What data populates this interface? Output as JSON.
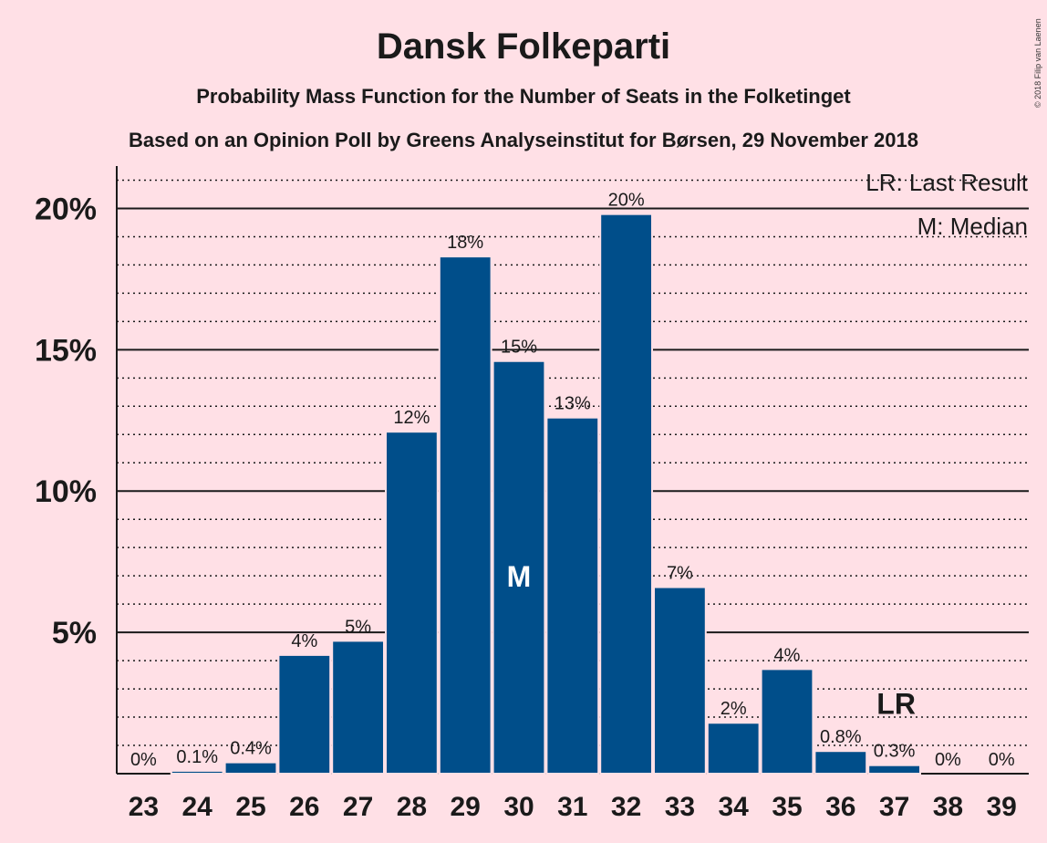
{
  "chart_data": {
    "type": "bar",
    "title": "Dansk Folkeparti",
    "subtitle": "Probability Mass Function for the Number of Seats in the Folketinget",
    "subtitle2": "Based on an Opinion Poll by Greens Analyseinstitut for Børsen, 29 November 2018",
    "copyright": "© 2018 Filip van Laenen",
    "categories": [
      "23",
      "24",
      "25",
      "26",
      "27",
      "28",
      "29",
      "30",
      "31",
      "32",
      "33",
      "34",
      "35",
      "36",
      "37",
      "38",
      "39"
    ],
    "values": [
      0.0,
      0.1,
      0.4,
      4.2,
      4.7,
      12.1,
      18.3,
      14.6,
      12.6,
      19.8,
      6.6,
      1.8,
      3.7,
      0.8,
      0.3,
      0.0,
      0.0
    ],
    "labels": [
      "0%",
      "0.1%",
      "0.4%",
      "4%",
      "5%",
      "12%",
      "18%",
      "15%",
      "13%",
      "20%",
      "7%",
      "2%",
      "4%",
      "0.8%",
      "0.3%",
      "0%",
      "0%"
    ],
    "ylim": [
      0,
      21.5
    ],
    "yticks": [
      5,
      10,
      15,
      20
    ],
    "ytick_labels": [
      "5%",
      "10%",
      "15%",
      "20%"
    ],
    "minor_grid_step": 1,
    "median_category": "30",
    "median_marker": "M",
    "last_result_category": "37",
    "last_result_marker": "LR",
    "legend": {
      "position": "top-right",
      "entries": [
        "LR: Last Result",
        "M: Median"
      ]
    },
    "colors": {
      "bar": "#004e8a",
      "background": "#ffe0e6"
    }
  }
}
